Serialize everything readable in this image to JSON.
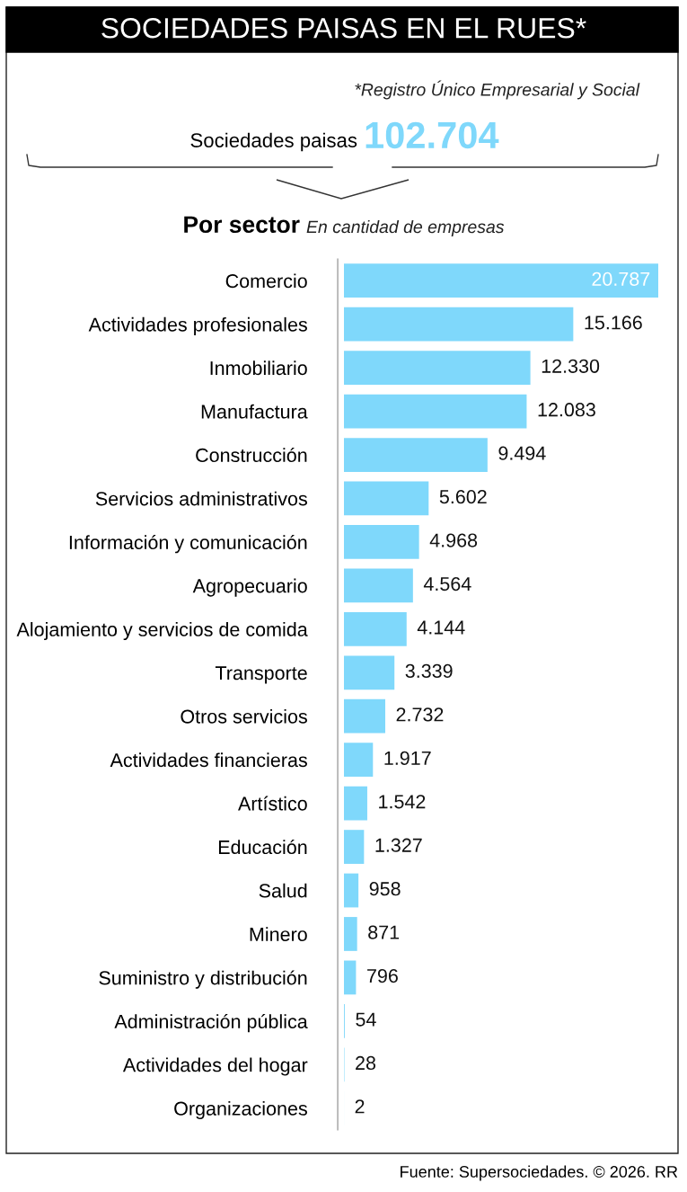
{
  "chart_data": {
    "type": "bar",
    "orientation": "horizontal",
    "title": "SOCIEDADES PAISAS EN EL RUES*",
    "subtitle": "Por sector",
    "annotations": [
      "*Registro Único Empresarial y Social",
      "Sociedades paisas",
      "102.704",
      "En cantidad de empresas",
      "Fuente: Supersociedades. © 2026. RR"
    ],
    "categories": [
      "Comercio",
      "Actividades profesionales",
      "Inmobiliario",
      "Manufactura",
      "Construcción",
      "Servicios administrativos",
      "Información y comunicación",
      "Agropecuario",
      "Alojamiento y servicios de comida",
      "Transporte",
      "Otros servicios",
      "Actividades financieras",
      "Artístico",
      "Educación",
      "Salud",
      "Minero",
      "Suministro y distribución",
      "Administración pública",
      "Actividades del hogar",
      "Organizaciones"
    ],
    "values": [
      20787,
      15166,
      12330,
      12083,
      9494,
      5602,
      4968,
      4564,
      4144,
      3339,
      2732,
      1917,
      1542,
      1327,
      958,
      871,
      796,
      54,
      28,
      2
    ],
    "value_labels": [
      "20.787",
      "15.166",
      "12.330",
      "12.083",
      "9.494",
      "5.602",
      "4.968",
      "4.564",
      "4.144",
      "3.339",
      "2.732",
      "1.917",
      "1.542",
      "1.327",
      "958",
      "871",
      "796",
      "54",
      "28",
      "2"
    ],
    "color": "#7fd8fb",
    "grid": false
  }
}
